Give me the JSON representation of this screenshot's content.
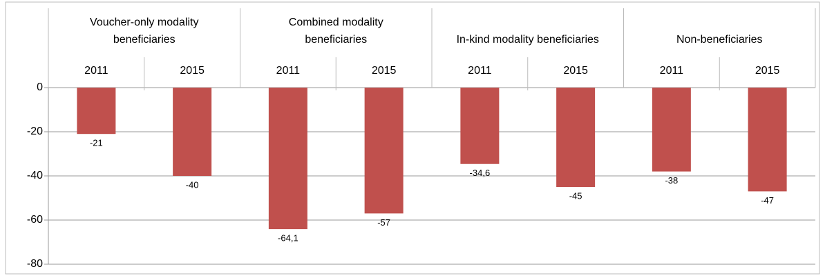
{
  "chart_data": {
    "type": "bar",
    "groups": [
      "Voucher-only modality beneficiaries",
      "Combined modality beneficiaries",
      "In-kind modality beneficiaries",
      "Non-beneficiaries"
    ],
    "categories": [
      "2011",
      "2015",
      "2011",
      "2015",
      "2011",
      "2015",
      "2011",
      "2015"
    ],
    "values": [
      -21,
      -40,
      -64.1,
      -57,
      -34.6,
      -45,
      -38,
      -47
    ],
    "value_labels": [
      "-21",
      "-40",
      "-64,1",
      "-57",
      "-34,6",
      "-45",
      "-38",
      "-47"
    ],
    "color": "#c0504d",
    "ylim": [
      -80,
      0
    ],
    "yticks": [
      0,
      -20,
      -40,
      -60,
      -80
    ],
    "grid": true
  }
}
